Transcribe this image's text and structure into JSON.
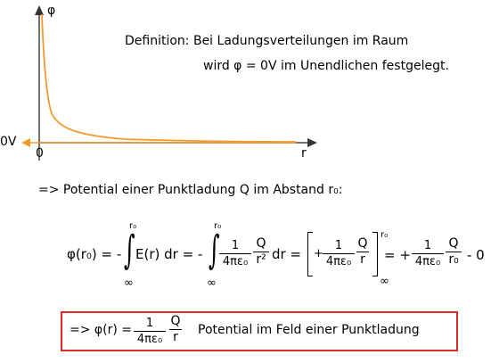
{
  "graph": {
    "y_label": "φ",
    "x_label": "r",
    "origin_label": "0",
    "zero_volt_label": "0V"
  },
  "definition": {
    "line1": "Definition: Bei Ladungsverteilungen im Raum",
    "line2": "wird φ = 0V im Unendlichen festgelegt."
  },
  "heading": "=> Potential einer Punktladung Q im Abstand r₀:",
  "equation": {
    "lhs": "φ(r₀) = -",
    "int1_upper": "r₀",
    "int1_lower": "∞",
    "int1_body": "E(r) dr = -",
    "int2_upper": "r₀",
    "int2_lower": "∞",
    "frac_one": "1",
    "frac_four_pi_eps": "4πε₀",
    "q": "Q",
    "r2": "r²",
    "dr_eq": "dr =",
    "bracket_plus": "+",
    "r": "r",
    "bracket_upper": "r₀",
    "bracket_lower": "∞",
    "eq_plus": "= +",
    "r0": "r₀",
    "minus_zero": "- 0"
  },
  "result": {
    "prefix": "=> φ(r) =",
    "one": "1",
    "four_pi_eps": "4πε₀",
    "q": "Q",
    "r": "r",
    "text": "Potential im Feld einer Punktladung"
  },
  "colors": {
    "curve": "#f39a2e",
    "axis_zero_arrow": "#f39a2e",
    "box": "#e0282a"
  }
}
